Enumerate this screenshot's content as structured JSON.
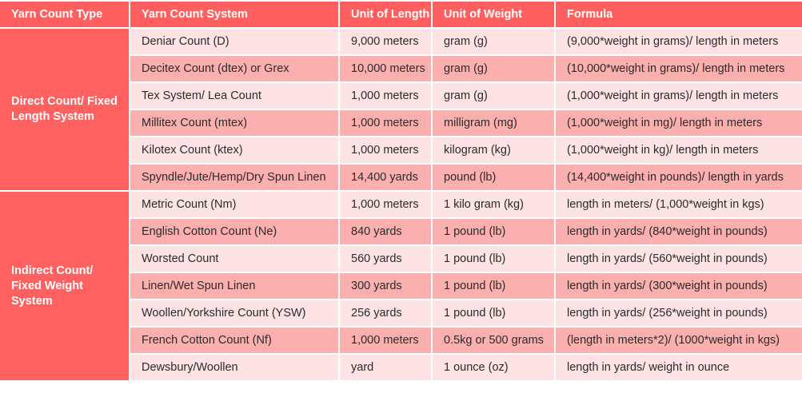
{
  "table": {
    "headers": [
      "Yarn Count Type",
      "Yarn Count System",
      "Unit of Length",
      "Unit of Weight",
      "Formula"
    ],
    "groups": [
      {
        "label": "Direct Count/ Fixed Length System",
        "rows": [
          [
            "Deniar Count (D)",
            "9,000 meters",
            "gram (g)",
            "(9,000*weight in grams)/ length in meters"
          ],
          [
            "Decitex Count (dtex) or Grex",
            "10,000 meters",
            "gram (g)",
            "(10,000*weight in grams)/ length in meters"
          ],
          [
            "Tex System/ Lea Count",
            "1,000 meters",
            "gram (g)",
            "(1,000*weight in grams)/ length in meters"
          ],
          [
            "Millitex Count (mtex)",
            "1,000 meters",
            "milligram (mg)",
            "(1,000*weight in mg)/ length in meters"
          ],
          [
            "Kilotex Count (ktex)",
            "1,000 meters",
            "kilogram (kg)",
            "(1,000*weight in kg)/ length in meters"
          ],
          [
            "Spyndle/Jute/Hemp/Dry Spun Linen",
            "14,400 yards",
            "pound (lb)",
            "(14,400*weight in pounds)/ length in yards"
          ]
        ]
      },
      {
        "label": "Indirect Count/ Fixed Weight System",
        "rows": [
          [
            "Metric Count (Nm)",
            "1,000 meters",
            "1 kilo gram (kg)",
            "length in meters/ (1,000*weight in kgs)"
          ],
          [
            "English Cotton Count (Ne)",
            "840 yards",
            "1 pound (lb)",
            "length in yards/ (840*weight in pounds)"
          ],
          [
            "Worsted Count",
            "560 yards",
            "1 pound (lb)",
            "length in yards/ (560*weight in pounds)"
          ],
          [
            "Linen/Wet Spun Linen",
            "300 yards",
            "1 pound (lb)",
            "length in yards/ (300*weight in pounds)"
          ],
          [
            "Woollen/Yorkshire Count (YSW)",
            "256 yards",
            "1 pound (lb)",
            "length in yards/ (256*weight in pounds)"
          ],
          [
            "French Cotton Count (Nf)",
            "1,000 meters",
            "0.5kg or 500 grams",
            "(length in meters*2)/ (1000*weight in kgs)"
          ],
          [
            "Dewsbury/Woollen",
            "yard",
            "1 ounce (oz)",
            "length in yards/ weight in ounce"
          ]
        ]
      }
    ]
  }
}
